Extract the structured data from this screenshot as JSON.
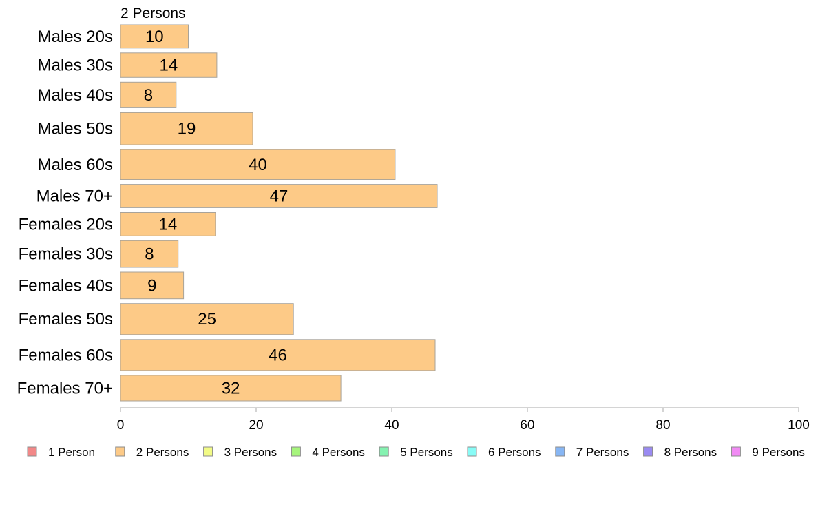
{
  "chart_data": {
    "type": "bar",
    "orientation": "horizontal",
    "series_title": "2 Persons",
    "categories": [
      "Males 20s",
      "Males 30s",
      "Males 40s",
      "Males 50s",
      "Males 60s",
      "Males 70+",
      "Females 20s",
      "Females 30s",
      "Females 40s",
      "Females 50s",
      "Females 60s",
      "Females 70+"
    ],
    "bar_labels": [
      "10",
      "14",
      "8",
      "19",
      "40",
      "47",
      "14",
      "8",
      "9",
      "25",
      "46",
      "32"
    ],
    "values": [
      10,
      14.2,
      8.2,
      19.5,
      40.5,
      46.7,
      14,
      8.5,
      9.3,
      25.5,
      46.4,
      32.5
    ],
    "weights": [
      1.05,
      1.1,
      1.15,
      1.45,
      1.35,
      1.05,
      1.05,
      1.2,
      1.2,
      1.4,
      1.4,
      1.15
    ],
    "xlim": [
      0,
      100
    ],
    "xticks": [
      "0",
      "20",
      "40",
      "60",
      "80",
      "100"
    ],
    "xtick_values": [
      0,
      20,
      40,
      60,
      80,
      100
    ],
    "bar_color": "#fdca87",
    "bar_stroke": "#a8a39a",
    "axis_color": "#a9a9a9",
    "legend_position": "bottom",
    "legend": [
      {
        "label": "1 Person",
        "color": "#f28888"
      },
      {
        "label": "2 Persons",
        "color": "#fdca87"
      },
      {
        "label": "3 Persons",
        "color": "#f2fb86"
      },
      {
        "label": "4 Persons",
        "color": "#a6f57c"
      },
      {
        "label": "5 Persons",
        "color": "#85f2b1"
      },
      {
        "label": "6 Persons",
        "color": "#88fbf6"
      },
      {
        "label": "7 Persons",
        "color": "#87b6f4"
      },
      {
        "label": "8 Persons",
        "color": "#9a8af2"
      },
      {
        "label": "9 Persons",
        "color": "#f18af4"
      }
    ]
  }
}
